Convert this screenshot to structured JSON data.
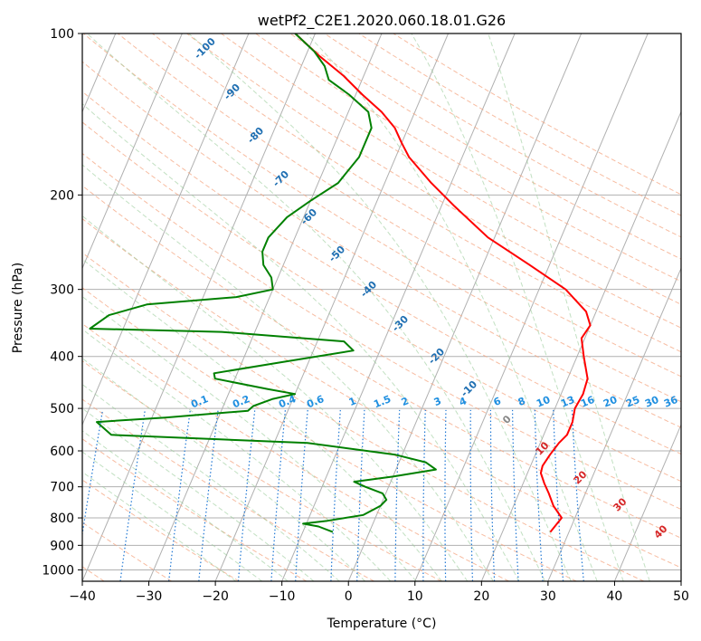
{
  "chart_data": {
    "type": "skew-t",
    "title": "wetPf2_C2E1.2020.060.18.01.G26",
    "xlabel": "Temperature (°C)",
    "ylabel": "Pressure (hPa)",
    "xlim": [
      -40,
      50
    ],
    "ylim": [
      1050,
      100
    ],
    "y_scale": "log",
    "x_ticks": [
      -40,
      -30,
      -20,
      -10,
      0,
      10,
      20,
      30,
      40,
      50
    ],
    "y_ticks": [
      100,
      200,
      300,
      400,
      500,
      600,
      700,
      800,
      900,
      1000
    ],
    "grid": true,
    "series": [
      {
        "name": "",
        "color": "#ff0000",
        "kind": "temperature",
        "points": [
          {
            "p": 850,
            "t": 27.2
          },
          {
            "p": 800,
            "t": 28.0
          },
          {
            "p": 760,
            "t": 26.0
          },
          {
            "p": 720,
            "t": 24.5
          },
          {
            "p": 690,
            "t": 23.2
          },
          {
            "p": 660,
            "t": 22.0
          },
          {
            "p": 640,
            "t": 21.8
          },
          {
            "p": 610,
            "t": 22.2
          },
          {
            "p": 580,
            "t": 22.8
          },
          {
            "p": 560,
            "t": 23.5
          },
          {
            "p": 530,
            "t": 23.5
          },
          {
            "p": 500,
            "t": 23.0
          },
          {
            "p": 470,
            "t": 23.3
          },
          {
            "p": 440,
            "t": 23.0
          },
          {
            "p": 400,
            "t": 21.0
          },
          {
            "p": 370,
            "t": 19.5
          },
          {
            "p": 350,
            "t": 20.0
          },
          {
            "p": 330,
            "t": 18.5
          },
          {
            "p": 300,
            "t": 14.0
          },
          {
            "p": 270,
            "t": 7.0
          },
          {
            "p": 240,
            "t": -1.0
          },
          {
            "p": 210,
            "t": -8.0
          },
          {
            "p": 190,
            "t": -13.0
          },
          {
            "p": 170,
            "t": -18.0
          },
          {
            "p": 160,
            "t": -20.0
          },
          {
            "p": 150,
            "t": -22.0
          },
          {
            "p": 140,
            "t": -25.0
          },
          {
            "p": 130,
            "t": -29.0
          },
          {
            "p": 120,
            "t": -33.0
          },
          {
            "p": 110,
            "t": -38.0
          },
          {
            "p": 100,
            "t": -43.0
          }
        ]
      },
      {
        "name": "",
        "color": "#008000",
        "kind": "dewpoint",
        "points": [
          {
            "p": 850,
            "t": -5.5
          },
          {
            "p": 830,
            "t": -8.0
          },
          {
            "p": 820,
            "t": -10.5
          },
          {
            "p": 810,
            "t": -7.0
          },
          {
            "p": 790,
            "t": -2.0
          },
          {
            "p": 760,
            "t": 0.0
          },
          {
            "p": 740,
            "t": 0.5
          },
          {
            "p": 720,
            "t": -0.5
          },
          {
            "p": 700,
            "t": -3.5
          },
          {
            "p": 685,
            "t": -5.5
          },
          {
            "p": 670,
            "t": 0.0
          },
          {
            "p": 650,
            "t": 6.0
          },
          {
            "p": 630,
            "t": 4.0
          },
          {
            "p": 610,
            "t": -1.0
          },
          {
            "p": 580,
            "t": -15.0
          },
          {
            "p": 560,
            "t": -45.0
          },
          {
            "p": 530,
            "t": -48.0
          },
          {
            "p": 520,
            "t": -38.0
          },
          {
            "p": 505,
            "t": -26.0
          },
          {
            "p": 495,
            "t": -25.5
          },
          {
            "p": 480,
            "t": -23.0
          },
          {
            "p": 470,
            "t": -20.0
          },
          {
            "p": 460,
            "t": -24.5
          },
          {
            "p": 440,
            "t": -33.0
          },
          {
            "p": 430,
            "t": -33.5
          },
          {
            "p": 410,
            "t": -24.0
          },
          {
            "p": 390,
            "t": -14.0
          },
          {
            "p": 375,
            "t": -16.0
          },
          {
            "p": 360,
            "t": -35.0
          },
          {
            "p": 355,
            "t": -55.0
          },
          {
            "p": 335,
            "t": -53.0
          },
          {
            "p": 320,
            "t": -48.0
          },
          {
            "p": 310,
            "t": -35.0
          },
          {
            "p": 300,
            "t": -30.0
          },
          {
            "p": 285,
            "t": -31.0
          },
          {
            "p": 270,
            "t": -33.0
          },
          {
            "p": 255,
            "t": -34.0
          },
          {
            "p": 240,
            "t": -34.0
          },
          {
            "p": 220,
            "t": -32.5
          },
          {
            "p": 205,
            "t": -30.0
          },
          {
            "p": 190,
            "t": -27.0
          },
          {
            "p": 170,
            "t": -25.5
          },
          {
            "p": 150,
            "t": -25.5
          },
          {
            "p": 140,
            "t": -27.0
          },
          {
            "p": 130,
            "t": -31.0
          },
          {
            "p": 122,
            "t": -35.0
          },
          {
            "p": 115,
            "t": -36.5
          },
          {
            "p": 108,
            "t": -39.0
          },
          {
            "p": 100,
            "t": -43.0
          }
        ]
      }
    ],
    "dry_adiabat_labels": [
      "-100",
      "-90",
      "-80",
      "-70",
      "-60",
      "-50",
      "-40",
      "-30",
      "-20",
      "-10",
      "0",
      "10",
      "20",
      "30",
      "40"
    ],
    "moist_adiabat_labels": [
      "10",
      "20",
      "30",
      "40"
    ],
    "mixing_ratio_labels": [
      "0.1",
      "0.2",
      "0.4",
      "0.6",
      "1",
      "1.5",
      "2",
      "3",
      "4",
      "6",
      "8",
      "10",
      "13",
      "16",
      "20",
      "25",
      "30",
      "36"
    ]
  }
}
